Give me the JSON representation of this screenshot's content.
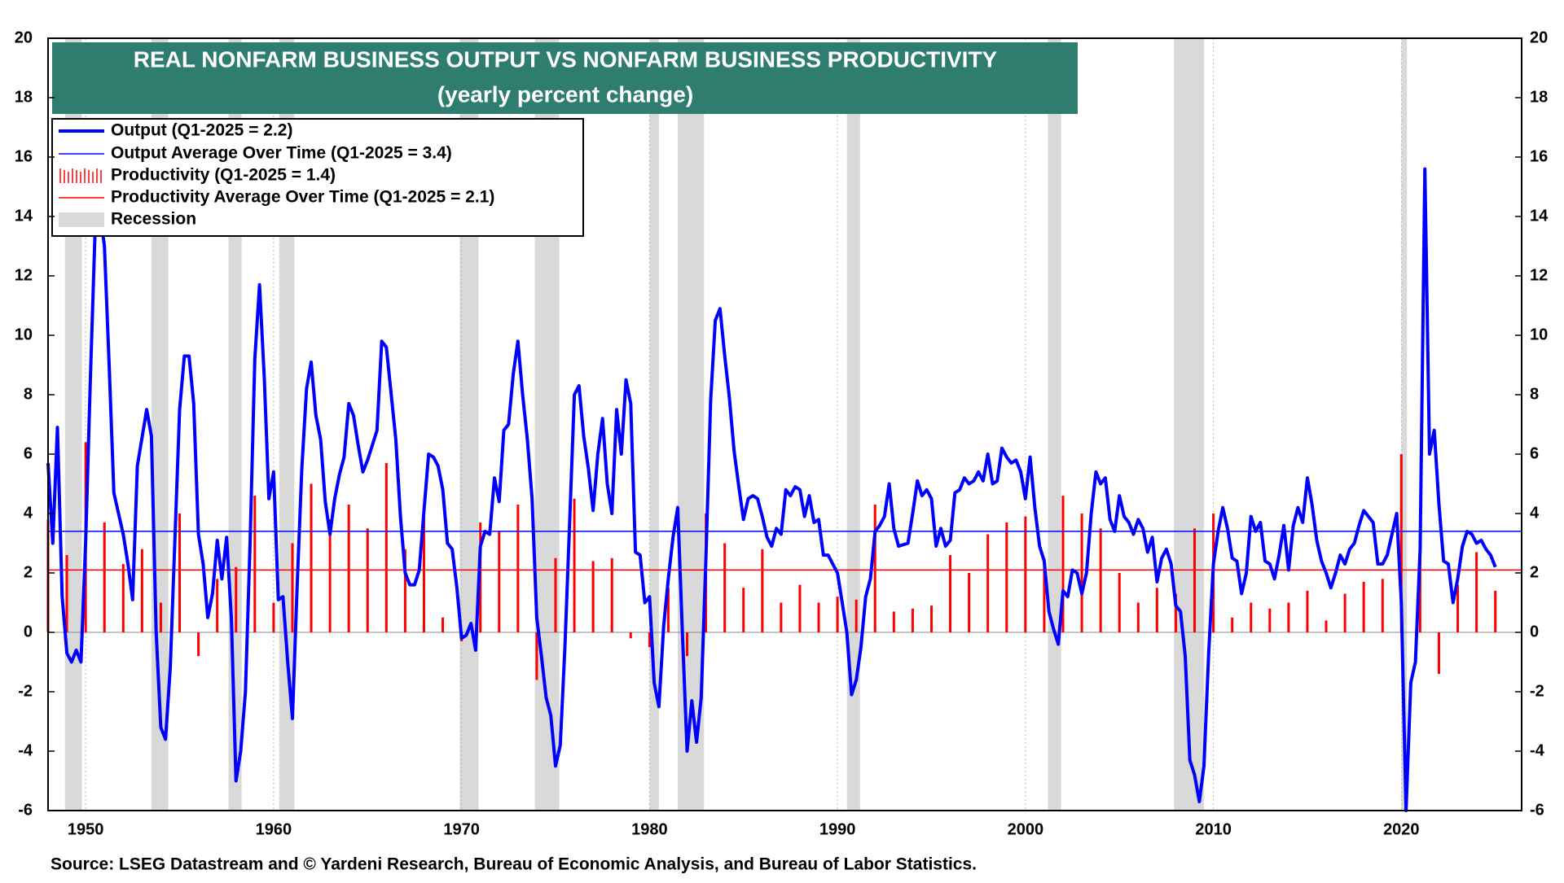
{
  "chart_data": {
    "type": "combo",
    "title": "REAL NONFARM BUSINESS OUTPUT VS NONFARM BUSINESS PRODUCTIVITY",
    "subtitle": "(yearly percent change)",
    "source": "Source: LSEG Datastream and © Yardeni Research, Bureau of Economic Analysis, and Bureau of Labor Statistics.",
    "xlim": [
      1948,
      2026.4
    ],
    "xticks": [
      1950,
      1960,
      1970,
      1980,
      1990,
      2000,
      2010,
      2020
    ],
    "ylim": [
      -6,
      20
    ],
    "yticks": [
      -6,
      -4,
      -2,
      0,
      2,
      4,
      6,
      8,
      10,
      12,
      14,
      16,
      18,
      20
    ],
    "y2lim": [
      -6,
      20
    ],
    "y2ticks": [
      -6,
      -4,
      -2,
      0,
      2,
      4,
      6,
      8,
      10,
      12,
      14,
      16,
      18,
      20
    ],
    "recession": {
      "name": "Recession",
      "color": "#d9d9d9",
      "periods": [
        [
          1948.9,
          1949.8
        ],
        [
          1953.5,
          1954.4
        ],
        [
          1957.6,
          1958.3
        ],
        [
          1960.3,
          1961.1
        ],
        [
          1969.9,
          1970.9
        ],
        [
          1973.9,
          1975.2
        ],
        [
          1980.0,
          1980.5
        ],
        [
          1981.5,
          1982.9
        ],
        [
          1990.5,
          1991.2
        ],
        [
          2001.2,
          2001.9
        ],
        [
          2007.9,
          2009.5
        ],
        [
          2020.0,
          2020.3
        ]
      ]
    },
    "series": [
      {
        "name": "Output (Q1-2025 = 2.2)",
        "kind": "line",
        "color": "#0000ff",
        "x": [
          1948.0,
          1948.25,
          1948.5,
          1948.75,
          1949.0,
          1949.25,
          1949.5,
          1949.75,
          1950.0,
          1950.25,
          1950.5,
          1950.75,
          1951.0,
          1951.25,
          1951.5,
          1951.75,
          1952.0,
          1952.25,
          1952.5,
          1952.75,
          1953.25,
          1953.5,
          1953.75,
          1954.0,
          1954.25,
          1954.5,
          1955.0,
          1955.25,
          1955.5,
          1955.75,
          1956.0,
          1956.25,
          1956.5,
          1956.75,
          1957.0,
          1957.25,
          1957.5,
          1957.75,
          1958.0,
          1958.25,
          1958.5,
          1958.75,
          1959.0,
          1959.25,
          1959.5,
          1959.75,
          1960.0,
          1960.25,
          1960.5,
          1960.75,
          1961.0,
          1961.25,
          1961.5,
          1961.75,
          1962.0,
          1962.25,
          1962.5,
          1962.75,
          1963.0,
          1963.25,
          1963.5,
          1963.75,
          1964.0,
          1964.25,
          1964.5,
          1964.75,
          1965.0,
          1965.5,
          1965.75,
          1966.0,
          1966.5,
          1966.75,
          1967.0,
          1967.25,
          1967.5,
          1967.75,
          1968.0,
          1968.25,
          1968.5,
          1968.75,
          1969.0,
          1969.25,
          1969.5,
          1969.75,
          1970.0,
          1970.25,
          1970.5,
          1970.75,
          1971.0,
          1971.25,
          1971.5,
          1971.75,
          1972.0,
          1972.25,
          1972.5,
          1972.75,
          1973.0,
          1973.25,
          1973.5,
          1973.75,
          1974.0,
          1974.25,
          1974.5,
          1974.75,
          1975.0,
          1975.25,
          1975.5,
          1975.75,
          1976.0,
          1976.25,
          1976.5,
          1976.75,
          1977.0,
          1977.25,
          1977.5,
          1977.75,
          1978.0,
          1978.25,
          1978.5,
          1978.75,
          1979.0,
          1979.25,
          1979.5,
          1979.75,
          1980.0,
          1980.25,
          1980.5,
          1980.75,
          1981.0,
          1981.25,
          1981.5,
          1981.75,
          1982.0,
          1982.25,
          1982.5,
          1982.75,
          1983.0,
          1983.25,
          1983.5,
          1983.75,
          1984.0,
          1984.25,
          1984.5,
          1984.75,
          1985.0,
          1985.25,
          1985.5,
          1985.75,
          1986.0,
          1986.25,
          1986.5,
          1986.75,
          1987.0,
          1987.25,
          1987.5,
          1987.75,
          1988.0,
          1988.25,
          1988.5,
          1988.75,
          1989.0,
          1989.25,
          1989.5,
          1989.75,
          1990.0,
          1990.25,
          1990.5,
          1990.75,
          1991.0,
          1991.25,
          1991.5,
          1991.75,
          1992.0,
          1992.25,
          1992.5,
          1992.75,
          1993.0,
          1993.25,
          1993.75,
          1994.0,
          1994.25,
          1994.5,
          1994.75,
          1995.0,
          1995.25,
          1995.5,
          1995.75,
          1996.0,
          1996.25,
          1996.5,
          1996.75,
          1997.0,
          1997.25,
          1997.5,
          1997.75,
          1998.0,
          1998.25,
          1998.5,
          1998.75,
          1999.0,
          1999.25,
          1999.5,
          1999.75,
          2000.0,
          2000.25,
          2000.5,
          2000.75,
          2001.0,
          2001.25,
          2001.5,
          2001.75,
          2002.0,
          2002.25,
          2002.5,
          2002.75,
          2003.0,
          2003.25,
          2003.5,
          2003.75,
          2004.0,
          2004.25,
          2004.5,
          2004.75,
          2005.0,
          2005.25,
          2005.5,
          2005.75,
          2006.0,
          2006.25,
          2006.5,
          2006.75,
          2007.0,
          2007.25,
          2007.5,
          2007.75,
          2008.0,
          2008.25,
          2008.5,
          2008.75,
          2009.0,
          2009.25,
          2009.5,
          2009.75,
          2010.0,
          2010.25,
          2010.5,
          2010.75,
          2011.0,
          2011.25,
          2011.5,
          2011.75,
          2012.0,
          2012.25,
          2012.5,
          2012.75,
          2013.0,
          2013.25,
          2013.5,
          2013.75,
          2014.0,
          2014.25,
          2014.5,
          2014.75,
          2015.0,
          2015.25,
          2015.5,
          2015.75,
          2016.0,
          2016.25,
          2016.5,
          2016.75,
          2017.0,
          2017.25,
          2017.5,
          2017.75,
          2018.0,
          2018.25,
          2018.5,
          2018.75,
          2019.0,
          2019.25,
          2019.5,
          2019.75,
          2020.0,
          2020.25,
          2020.5,
          2020.75,
          2021.0,
          2021.25,
          2021.5,
          2021.75,
          2022.0,
          2022.25,
          2022.5,
          2022.75,
          2023.0,
          2023.25,
          2023.5,
          2023.75,
          2024.0,
          2024.25,
          2024.5,
          2024.75,
          2025.0
        ],
        "values": [
          5.7,
          3.0,
          6.9,
          1.2,
          -0.7,
          -1.0,
          -0.6,
          -1.0,
          3.0,
          8.5,
          13.5,
          14.2,
          13.0,
          9.0,
          4.7,
          4.0,
          3.3,
          2.3,
          1.1,
          5.6,
          7.5,
          6.6,
          0.0,
          -3.2,
          -3.6,
          -1.2,
          7.5,
          9.3,
          9.3,
          7.7,
          3.3,
          2.3,
          0.5,
          1.3,
          3.1,
          1.8,
          3.2,
          0.5,
          -5.0,
          -4.0,
          -2.0,
          3.0,
          9.2,
          11.7,
          8.6,
          4.5,
          5.4,
          1.1,
          1.2,
          -1.0,
          -2.9,
          1.5,
          5.5,
          8.2,
          9.1,
          7.3,
          6.5,
          4.4,
          3.3,
          4.5,
          5.3,
          5.9,
          7.7,
          7.3,
          6.3,
          5.4,
          5.8,
          6.8,
          9.8,
          9.6,
          6.5,
          3.9,
          2.0,
          1.6,
          1.6,
          2.1,
          4.1,
          6.0,
          5.9,
          5.6,
          4.8,
          3.0,
          2.8,
          1.5,
          -0.2,
          -0.1,
          0.3,
          -0.6,
          2.9,
          3.4,
          3.3,
          5.2,
          4.4,
          6.8,
          7.0,
          8.7,
          9.8,
          8.0,
          6.5,
          4.5,
          0.5,
          -0.8,
          -2.2,
          -2.8,
          -4.5,
          -3.8,
          -0.5,
          3.7,
          8.0,
          8.3,
          6.6,
          5.5,
          4.1,
          6.0,
          7.2,
          5.0,
          4.0,
          7.5,
          6.0,
          8.5,
          7.7,
          2.7,
          2.6,
          1.0,
          1.2,
          -1.7,
          -2.5,
          0.2,
          1.8,
          3.2,
          4.2,
          0.0,
          -4.0,
          -2.3,
          -3.7,
          -2.2,
          2.5,
          7.8,
          10.5,
          10.9,
          9.3,
          7.9,
          6.1,
          4.9,
          3.8,
          4.5,
          4.6,
          4.5,
          3.9,
          3.2,
          2.9,
          3.5,
          3.3,
          4.8,
          4.6,
          4.9,
          4.8,
          3.9,
          4.6,
          3.7,
          3.8,
          2.6,
          2.6,
          2.3,
          2.0,
          1.0,
          0.0,
          -2.1,
          -1.6,
          -0.5,
          1.2,
          1.8,
          3.4,
          3.6,
          3.9,
          5.0,
          3.5,
          2.9,
          3.0,
          4.0,
          5.1,
          4.6,
          4.8,
          4.5,
          2.9,
          3.5,
          2.9,
          3.1,
          4.7,
          4.8,
          5.2,
          5.0,
          5.1,
          5.4,
          5.1,
          6.0,
          5.0,
          5.1,
          6.2,
          5.9,
          5.7,
          5.8,
          5.4,
          4.5,
          5.9,
          4.2,
          2.9,
          2.4,
          0.7,
          0.1,
          -0.4,
          1.4,
          1.2,
          2.1,
          2.0,
          1.3,
          2.0,
          4.0,
          5.4,
          5.0,
          5.2,
          3.8,
          3.4,
          4.6,
          3.9,
          3.7,
          3.3,
          3.8,
          3.5,
          2.7,
          3.2,
          1.7,
          2.5,
          2.8,
          2.3,
          0.9,
          0.7,
          -0.8,
          -4.3,
          -4.8,
          -5.7,
          -4.5,
          -0.7,
          2.3,
          3.4,
          4.2,
          3.5,
          2.5,
          2.4,
          1.3,
          2.0,
          3.9,
          3.4,
          3.7,
          2.4,
          2.3,
          1.8,
          2.6,
          3.6,
          2.1,
          3.6,
          4.2,
          3.7,
          5.2,
          4.3,
          3.1,
          2.4,
          2.0,
          1.5,
          2.0,
          2.6,
          2.3,
          2.8,
          3.0,
          3.6,
          4.1,
          3.9,
          3.7,
          2.3,
          2.3,
          2.6,
          3.3,
          4.0,
          1.0,
          -6.0,
          -1.7,
          -1.0,
          2.8,
          15.6,
          6.0,
          6.8,
          4.3,
          2.4,
          2.3,
          1.0,
          1.8,
          2.9,
          3.4,
          3.3,
          3.0,
          3.1,
          2.8,
          2.6,
          2.2
        ]
      },
      {
        "name": "Output Average Over Time (Q1-2025 = 3.4)",
        "kind": "hline",
        "color": "#0000ff",
        "value": 3.4
      },
      {
        "name": "Productivity  (Q1-2025 = 1.4)",
        "kind": "bar",
        "color": "#ff0000",
        "x": [
          1948,
          1949,
          1950,
          1951,
          1952,
          1953,
          1954,
          1955,
          1956,
          1957,
          1958,
          1959,
          1960,
          1961,
          1962,
          1963,
          1964,
          1965,
          1966,
          1967,
          1968,
          1969,
          1970,
          1971,
          1972,
          1973,
          1974,
          1975,
          1976,
          1977,
          1978,
          1979,
          1980,
          1981,
          1982,
          1983,
          1984,
          1985,
          1986,
          1987,
          1988,
          1989,
          1990,
          1991,
          1992,
          1993,
          1994,
          1995,
          1996,
          1997,
          1998,
          1999,
          2000,
          2001,
          2002,
          2003,
          2004,
          2005,
          2006,
          2007,
          2008,
          2009,
          2010,
          2011,
          2012,
          2013,
          2014,
          2015,
          2016,
          2017,
          2018,
          2019,
          2020,
          2021,
          2022,
          2023,
          2024,
          2025
        ],
        "values": [
          3.8,
          2.6,
          6.4,
          3.7,
          2.3,
          2.8,
          1.0,
          4.0,
          -0.8,
          1.8,
          2.2,
          4.6,
          1.0,
          3.0,
          5.0,
          3.8,
          4.3,
          3.5,
          5.7,
          2.8,
          3.9,
          0.5,
          -0.3,
          3.7,
          3.4,
          4.3,
          -1.6,
          2.5,
          4.5,
          2.4,
          2.5,
          -0.2,
          -0.5,
          1.5,
          -0.8,
          4.0,
          3.0,
          1.5,
          2.8,
          1.0,
          1.6,
          1.0,
          1.2,
          1.1,
          4.3,
          0.7,
          0.8,
          0.9,
          2.6,
          2.0,
          3.3,
          3.7,
          3.9,
          2.5,
          4.6,
          4.0,
          3.5,
          2.0,
          1.0,
          1.5,
          1.3,
          3.5,
          4.0,
          0.5,
          1.0,
          0.8,
          1.0,
          1.4,
          0.4,
          1.3,
          1.7,
          1.8,
          6.0,
          2.5,
          -1.4,
          1.6,
          2.7,
          1.4
        ]
      },
      {
        "name": "Productivity Average Over Time (Q1-2025 = 2.1)",
        "kind": "hline",
        "color": "#ff0000",
        "value": 2.1
      }
    ]
  }
}
